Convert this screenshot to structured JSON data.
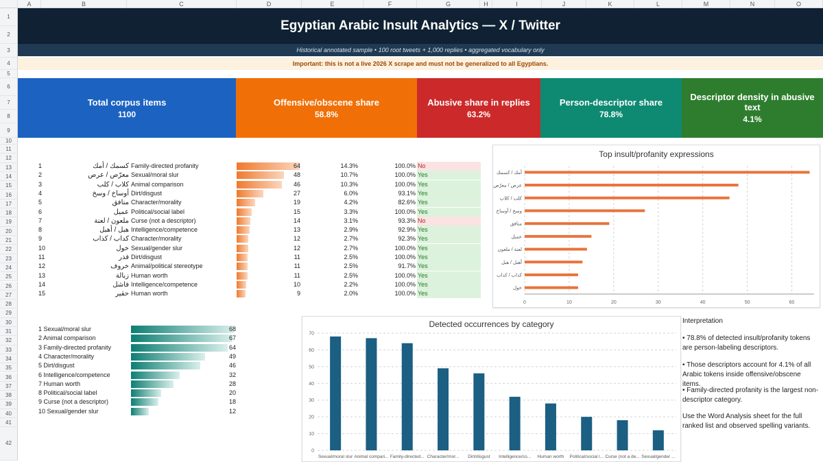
{
  "columns": [
    "A",
    "B",
    "C",
    "D",
    "E",
    "F",
    "G",
    "H",
    "I",
    "J",
    "K",
    "L",
    "M",
    "N",
    "O"
  ],
  "rows": [
    "1",
    "2",
    "3",
    "4",
    "5",
    "6",
    "7",
    "8",
    "9",
    "10",
    "11",
    "12",
    "13",
    "14",
    "15",
    "16",
    "17",
    "18",
    "19",
    "20",
    "21",
    "22",
    "23",
    "24",
    "25",
    "26",
    "27",
    "28",
    "29",
    "30",
    "31",
    "32",
    "33",
    "34",
    "35",
    "36",
    "37",
    "38",
    "39",
    "40",
    "41",
    "42"
  ],
  "header": {
    "title": "Egyptian Arabic Insult Analytics — X / Twitter",
    "subtitle": "Historical annotated sample • 100 root tweets + 1,000 replies • aggregated vocabulary only",
    "warning": "Important: this is not a live 2026 X scrape and must not be generalized to all Egyptians."
  },
  "kpis": [
    {
      "label": "Total corpus items",
      "value": "1100",
      "color": "#1c63c1"
    },
    {
      "label": "Offensive/obscene share",
      "value": "58.8%",
      "color": "#f07007"
    },
    {
      "label": "Abusive share in replies",
      "value": "63.2%",
      "color": "#cc2a2a"
    },
    {
      "label": "Person-descriptor share",
      "value": "78.8%",
      "color": "#0e8a72"
    },
    {
      "label": "Descriptor density in abusive text",
      "value": "4.1%",
      "color": "#2e7d2e"
    }
  ],
  "top_table": {
    "max": 64,
    "rows": [
      {
        "rank": "1",
        "term": "كسمك / أمك",
        "category": "Family-directed profanity",
        "count": 64,
        "count_label": "64",
        "share": "14.3%",
        "pct": "100.0%",
        "flag": "No"
      },
      {
        "rank": "2",
        "term": "معرّص / عرص",
        "category": "Sexual/moral slur",
        "count": 48,
        "count_label": "48",
        "share": "10.7%",
        "pct": "100.0%",
        "flag": "Yes"
      },
      {
        "rank": "3",
        "term": "كلاب / كلب",
        "category": "Animal comparison",
        "count": 46,
        "count_label": "46",
        "share": "10.3%",
        "pct": "100.0%",
        "flag": "Yes"
      },
      {
        "rank": "4",
        "term": "أوساخ / وسخ",
        "category": "Dirt/disgust",
        "count": 27,
        "count_label": "27",
        "share": "6.0%",
        "pct": "93.1%",
        "flag": "Yes"
      },
      {
        "rank": "5",
        "term": "منافق",
        "category": "Character/morality",
        "count": 19,
        "count_label": "19",
        "share": "4.2%",
        "pct": "82.6%",
        "flag": "Yes"
      },
      {
        "rank": "6",
        "term": "عميل",
        "category": "Political/social label",
        "count": 15,
        "count_label": "15",
        "share": "3.3%",
        "pct": "100.0%",
        "flag": "Yes"
      },
      {
        "rank": "7",
        "term": "ملعون / لعنة",
        "category": "Curse (not a descriptor)",
        "count": 14,
        "count_label": "14",
        "share": "3.1%",
        "pct": "93.3%",
        "flag": "No"
      },
      {
        "rank": "8",
        "term": "هبل / أهبل",
        "category": "Intelligence/competence",
        "count": 13,
        "count_label": "13",
        "share": "2.9%",
        "pct": "92.9%",
        "flag": "Yes"
      },
      {
        "rank": "9",
        "term": "كداب / كذاب",
        "category": "Character/morality",
        "count": 12,
        "count_label": "12",
        "share": "2.7%",
        "pct": "92.3%",
        "flag": "Yes"
      },
      {
        "rank": "10",
        "term": "خول",
        "category": "Sexual/gender slur",
        "count": 12,
        "count_label": "12",
        "share": "2.7%",
        "pct": "100.0%",
        "flag": "Yes"
      },
      {
        "rank": "11",
        "term": "قذر",
        "category": "Dirt/disgust",
        "count": 11,
        "count_label": "11",
        "share": "2.5%",
        "pct": "100.0%",
        "flag": "Yes"
      },
      {
        "rank": "12",
        "term": "خروف",
        "category": "Animal/political stereotype",
        "count": 11,
        "count_label": "11",
        "share": "2.5%",
        "pct": "91.7%",
        "flag": "Yes"
      },
      {
        "rank": "13",
        "term": "زبالة",
        "category": "Human worth",
        "count": 11,
        "count_label": "11",
        "share": "2.5%",
        "pct": "100.0%",
        "flag": "Yes"
      },
      {
        "rank": "14",
        "term": "فاشل",
        "category": "Intelligence/competence",
        "count": 10,
        "count_label": "10",
        "share": "2.2%",
        "pct": "100.0%",
        "flag": "Yes"
      },
      {
        "rank": "15",
        "term": "حقير",
        "category": "Human worth",
        "count": 9,
        "count_label": "9",
        "share": "2.0%",
        "pct": "100.0%",
        "flag": "Yes"
      }
    ]
  },
  "category_table": {
    "max": 68,
    "rows": [
      {
        "label": "1 Sexual/moral slur",
        "count": 68,
        "count_label": "68"
      },
      {
        "label": "2 Animal comparison",
        "count": 67,
        "count_label": "67"
      },
      {
        "label": "3 Family-directed profanity",
        "count": 64,
        "count_label": "64"
      },
      {
        "label": "4 Character/morality",
        "count": 49,
        "count_label": "49"
      },
      {
        "label": "5 Dirt/disgust",
        "count": 46,
        "count_label": "46"
      },
      {
        "label": "6 Intelligence/competence",
        "count": 32,
        "count_label": "32"
      },
      {
        "label": "7 Human worth",
        "count": 28,
        "count_label": "28"
      },
      {
        "label": "8 Political/social label",
        "count": 20,
        "count_label": "20"
      },
      {
        "label": "9 Curse (not a descriptor)",
        "count": 18,
        "count_label": "18"
      },
      {
        "label": "10 Sexual/gender slur",
        "count": 12,
        "count_label": "12"
      }
    ]
  },
  "chart_data": [
    {
      "type": "bar",
      "orientation": "horizontal",
      "title": "Top insult/profanity expressions",
      "categories": [
        "أمك / كسمك",
        "عرص / معرّص",
        "كلب / كلاب",
        "وسخ / أوساخ",
        "منافق",
        "عميل",
        "لعنة / ملعون",
        "أهبل / هبل",
        "كذاب / كداب",
        "خول"
      ],
      "values": [
        64,
        48,
        46,
        27,
        19,
        15,
        14,
        13,
        12,
        12
      ],
      "xlim": [
        0,
        65
      ],
      "xticks": [
        "0",
        "10",
        "20",
        "30",
        "40",
        "50",
        "60"
      ],
      "grid": true,
      "color": "#e8743b"
    },
    {
      "type": "bar",
      "title": "Detected occurrences by category",
      "categories": [
        "Sexual/moral slur",
        "Animal compari...",
        "Family-directed...",
        "Character/mor...",
        "Dirt/disgust",
        "Intelligence/co...",
        "Human worth",
        "Political/social l...",
        "Curse (not a de...",
        "Sexual/gender ..."
      ],
      "values": [
        68,
        67,
        64,
        49,
        46,
        32,
        28,
        20,
        18,
        12
      ],
      "ylim": [
        0,
        70
      ],
      "yticks": [
        "0",
        "10",
        "20",
        "30",
        "40",
        "50",
        "60",
        "70"
      ],
      "grid": true,
      "color": "#1b5f82"
    }
  ],
  "interpretation": {
    "heading": "Interpretation",
    "bullets": [
      "• 78.8% of detected insult/profanity tokens are person-labeling descriptors.",
      "• Those descriptors account for 4.1% of all Arabic tokens inside offensive/obscene items.",
      "• Family-directed profanity is the largest non-descriptor category."
    ],
    "note": "Use the Word Analysis sheet for the full ranked list and observed spelling variants."
  }
}
